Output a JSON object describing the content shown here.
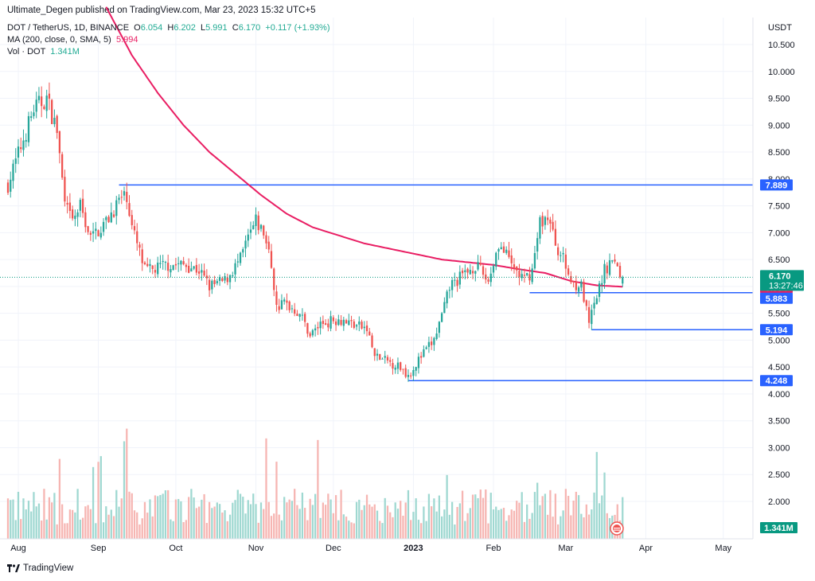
{
  "header": {
    "publisher_line": "Ultimate_Degen published on TradingView.com, Mar 23, 2023 15:32 UTC+5"
  },
  "legend": {
    "symbol": "DOT / TetherUS, 1D, BINANCE",
    "o_label": "O",
    "o_value": "6.054",
    "h_label": "H",
    "h_value": "6.202",
    "l_label": "L",
    "l_value": "5.991",
    "c_label": "C",
    "c_value": "6.170",
    "change": "+0.117 (+1.93%)",
    "ma_label": "MA (200, close, 0, SMA, 5)",
    "ma_value": "5.994",
    "vol_label": "Vol · DOT",
    "vol_value": "1.341M"
  },
  "price_axis": {
    "currency": "USDT",
    "ticks": [
      "10.500",
      "10.000",
      "9.500",
      "9.000",
      "8.500",
      "8.000",
      "7.500",
      "7.000",
      "6.500",
      "6.000",
      "5.500",
      "5.000",
      "4.500",
      "4.000",
      "3.500",
      "3.000",
      "2.500",
      "2.000"
    ]
  },
  "price_tags": [
    {
      "text": "7.889",
      "color": "#2962ff"
    },
    {
      "text": "5.994",
      "color": "#e91e63"
    },
    {
      "text": "5.883",
      "color": "#2962ff"
    },
    {
      "text": "5.194",
      "color": "#2962ff"
    },
    {
      "text": "4.248",
      "color": "#2962ff"
    }
  ],
  "last_price_tag": {
    "price": "6.170",
    "countdown": "13:27:46",
    "color": "#089981"
  },
  "volume_tag": {
    "text": "1.341M",
    "color": "#089981"
  },
  "time_axis": {
    "labels": [
      "Aug",
      "Sep",
      "Oct",
      "Nov",
      "Dec",
      "2023",
      "Feb",
      "Mar",
      "Apr",
      "May"
    ]
  },
  "footer": {
    "brand": "TradingView"
  },
  "colors": {
    "up": "#26a69a",
    "down": "#ef5350",
    "ma": "#e91e63",
    "levels": "#2962ff",
    "vol_up": "#9fd8d1",
    "vol_down": "#f6b5b2"
  },
  "chart_data": {
    "type": "candlestick",
    "symbol": "DOT / TetherUS",
    "interval": "1D",
    "y_axis_unit": "USDT",
    "ylim": [
      1.4,
      10.9
    ],
    "x_range": [
      "2022-07-28",
      "2023-05-10"
    ],
    "grid": true,
    "horizontal_levels": [
      {
        "price": 7.889,
        "from": "2022-09-09",
        "label": "7.889"
      },
      {
        "price": 5.883,
        "from": "2023-02-15",
        "label": "5.883"
      },
      {
        "price": 5.194,
        "from": "2023-03-11",
        "label": "5.194"
      },
      {
        "price": 4.248,
        "from": "2022-12-30",
        "label": "4.248"
      }
    ],
    "close_anchors": [
      [
        "2022-07-28",
        7.9
      ],
      [
        "2022-08-02",
        8.6
      ],
      [
        "2022-08-07",
        9.3
      ],
      [
        "2022-08-12",
        9.5
      ],
      [
        "2022-08-16",
        8.9
      ],
      [
        "2022-08-19",
        7.5
      ],
      [
        "2022-08-22",
        7.2
      ],
      [
        "2022-08-25",
        7.5
      ],
      [
        "2022-08-29",
        6.9
      ],
      [
        "2022-09-04",
        7.2
      ],
      [
        "2022-09-09",
        7.6
      ],
      [
        "2022-09-12",
        7.7
      ],
      [
        "2022-09-14",
        7.1
      ],
      [
        "2022-09-19",
        6.3
      ],
      [
        "2022-09-22",
        6.3
      ],
      [
        "2022-09-27",
        6.4
      ],
      [
        "2022-10-05",
        6.4
      ],
      [
        "2022-10-10",
        6.3
      ],
      [
        "2022-10-14",
        6.0
      ],
      [
        "2022-10-20",
        6.1
      ],
      [
        "2022-10-26",
        6.5
      ],
      [
        "2022-10-29",
        6.9
      ],
      [
        "2022-11-01",
        7.2
      ],
      [
        "2022-11-04",
        7.0
      ],
      [
        "2022-11-07",
        6.4
      ],
      [
        "2022-11-09",
        5.6
      ],
      [
        "2022-11-12",
        5.7
      ],
      [
        "2022-11-18",
        5.5
      ],
      [
        "2022-11-22",
        5.1
      ],
      [
        "2022-11-26",
        5.3
      ],
      [
        "2022-12-03",
        5.4
      ],
      [
        "2022-12-09",
        5.3
      ],
      [
        "2022-12-14",
        5.2
      ],
      [
        "2022-12-17",
        4.7
      ],
      [
        "2022-12-22",
        4.6
      ],
      [
        "2022-12-27",
        4.5
      ],
      [
        "2022-12-30",
        4.35
      ],
      [
        "2023-01-04",
        4.7
      ],
      [
        "2023-01-09",
        5.0
      ],
      [
        "2023-01-13",
        5.6
      ],
      [
        "2023-01-15",
        6.0
      ],
      [
        "2023-01-20",
        6.2
      ],
      [
        "2023-01-25",
        6.4
      ],
      [
        "2023-01-30",
        6.1
      ],
      [
        "2023-02-03",
        6.8
      ],
      [
        "2023-02-08",
        6.4
      ],
      [
        "2023-02-13",
        6.1
      ],
      [
        "2023-02-16",
        6.3
      ],
      [
        "2023-02-19",
        7.2
      ],
      [
        "2023-02-22",
        7.3
      ],
      [
        "2023-02-25",
        6.8
      ],
      [
        "2023-02-28",
        6.5
      ],
      [
        "2023-03-03",
        6.1
      ],
      [
        "2023-03-07",
        6.0
      ],
      [
        "2023-03-10",
        5.3
      ],
      [
        "2023-03-13",
        5.8
      ],
      [
        "2023-03-16",
        6.3
      ],
      [
        "2023-03-19",
        6.5
      ],
      [
        "2023-03-23",
        6.17
      ]
    ],
    "moving_average": {
      "name": "MA (200, close, 0, SMA, 5)",
      "anchors": [
        [
          "2022-09-04",
          11.2
        ],
        [
          "2022-09-14",
          10.3
        ],
        [
          "2022-09-24",
          9.6
        ],
        [
          "2022-10-04",
          9.0
        ],
        [
          "2022-10-14",
          8.5
        ],
        [
          "2022-10-24",
          8.1
        ],
        [
          "2022-11-03",
          7.7
        ],
        [
          "2022-11-13",
          7.35
        ],
        [
          "2022-11-23",
          7.1
        ],
        [
          "2022-12-03",
          6.95
        ],
        [
          "2022-12-13",
          6.8
        ],
        [
          "2022-12-23",
          6.7
        ],
        [
          "2023-01-02",
          6.6
        ],
        [
          "2023-01-12",
          6.5
        ],
        [
          "2023-01-22",
          6.45
        ],
        [
          "2023-02-01",
          6.4
        ],
        [
          "2023-02-11",
          6.32
        ],
        [
          "2023-02-21",
          6.25
        ],
        [
          "2023-03-03",
          6.1
        ],
        [
          "2023-03-13",
          6.02
        ],
        [
          "2023-03-23",
          5.994
        ]
      ]
    },
    "volume": {
      "unit": "DOT",
      "last": "1.341M"
    }
  }
}
